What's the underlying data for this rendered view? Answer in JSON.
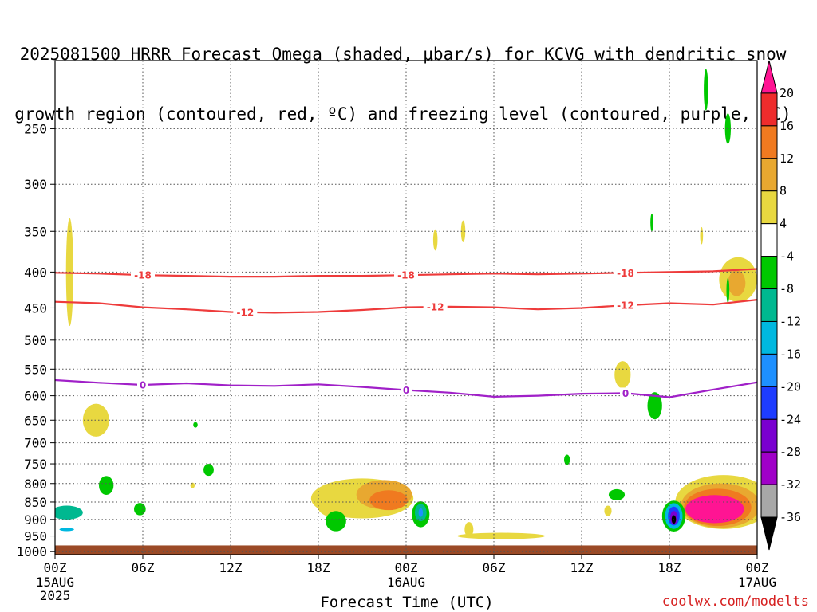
{
  "title_line1": "2025081500 HRRR Forecast Omega (shaded, μbar/s) for KCVG with dendritic snow",
  "title_line2": "growth region (contoured, red, ºC) and freezing level (contoured, purple, ºC)",
  "credit": "coolwx.com/modelts",
  "chart_data": {
    "type": "heatmap",
    "title": "2025081500 HRRR Forecast Omega (shaded, μbar/s) for KCVG with dendritic snow growth region (contoured, red, ºC) and freezing level (contoured, purple, ºC)",
    "xlabel": "Forecast Time (UTC)",
    "ylabel": "",
    "x_ticks": [
      {
        "hour": 0,
        "label": "00Z",
        "sub": [
          "15AUG",
          "2025"
        ]
      },
      {
        "hour": 6,
        "label": "06Z",
        "sub": []
      },
      {
        "hour": 12,
        "label": "12Z",
        "sub": []
      },
      {
        "hour": 18,
        "label": "18Z",
        "sub": []
      },
      {
        "hour": 24,
        "label": "00Z",
        "sub": [
          "16AUG"
        ]
      },
      {
        "hour": 30,
        "label": "06Z",
        "sub": []
      },
      {
        "hour": 36,
        "label": "12Z",
        "sub": []
      },
      {
        "hour": 42,
        "label": "18Z",
        "sub": []
      },
      {
        "hour": 48,
        "label": "00Z",
        "sub": [
          "17AUG"
        ]
      }
    ],
    "xlim": [
      0,
      48
    ],
    "y_ticks": [
      250,
      300,
      350,
      400,
      450,
      500,
      550,
      600,
      650,
      700,
      750,
      800,
      850,
      900,
      950,
      1000
    ],
    "ylim": [
      1010,
      200
    ],
    "y_scale": "log-pressure",
    "grid": true,
    "colorbar": {
      "labels": [
        "20",
        "16",
        "12",
        "8",
        "4",
        "-4",
        "-8",
        "-12",
        "-16",
        "-20",
        "-24",
        "-28",
        "-32",
        "-36"
      ],
      "colors": [
        "#ff1493",
        "#ee2c2c",
        "#f07a20",
        "#e8a830",
        "#e8d840",
        "#ffffff",
        "#00c800",
        "#00b890",
        "#00b8e0",
        "#1e90ff",
        "#1e3cff",
        "#7a00d0",
        "#a000c8",
        "#a8a8a8",
        "#000000"
      ]
    },
    "contours": [
      {
        "name": "-18",
        "color": "#ee3b3b",
        "points": [
          [
            0,
            401
          ],
          [
            3,
            402
          ],
          [
            6,
            404
          ],
          [
            9,
            405
          ],
          [
            12,
            406
          ],
          [
            15,
            406
          ],
          [
            18,
            405
          ],
          [
            21,
            405
          ],
          [
            24,
            404
          ],
          [
            27,
            403
          ],
          [
            30,
            402
          ],
          [
            33,
            403
          ],
          [
            36,
            402
          ],
          [
            39,
            401
          ],
          [
            42,
            400
          ],
          [
            45,
            399
          ],
          [
            48,
            396
          ]
        ],
        "labels": [
          6,
          24,
          39
        ]
      },
      {
        "name": "-12",
        "color": "#ee3b3b",
        "points": [
          [
            0,
            441
          ],
          [
            3,
            443
          ],
          [
            6,
            449
          ],
          [
            9,
            452
          ],
          [
            12,
            456
          ],
          [
            15,
            457
          ],
          [
            18,
            456
          ],
          [
            21,
            453
          ],
          [
            24,
            449
          ],
          [
            27,
            448
          ],
          [
            30,
            449
          ],
          [
            33,
            452
          ],
          [
            36,
            450
          ],
          [
            39,
            446
          ],
          [
            42,
            443
          ],
          [
            45,
            445
          ],
          [
            48,
            438
          ]
        ],
        "labels": [
          13,
          26,
          39
        ]
      },
      {
        "name": "0",
        "color": "#a020c8",
        "points": [
          [
            0,
            570
          ],
          [
            3,
            575
          ],
          [
            6,
            579
          ],
          [
            9,
            576
          ],
          [
            12,
            580
          ],
          [
            15,
            581
          ],
          [
            18,
            578
          ],
          [
            21,
            583
          ],
          [
            24,
            589
          ],
          [
            27,
            594
          ],
          [
            30,
            602
          ],
          [
            33,
            600
          ],
          [
            36,
            596
          ],
          [
            39,
            595
          ],
          [
            42,
            603
          ],
          [
            45,
            588
          ],
          [
            48,
            574
          ]
        ],
        "labels": [
          6,
          24,
          39
        ]
      }
    ],
    "omega_regions": [
      {
        "hour": 0.8,
        "p": 880,
        "w": 1.1,
        "ph": 40,
        "value": -12
      },
      {
        "hour": 0.8,
        "p": 930,
        "w": 0.5,
        "ph": 10,
        "value": -16
      },
      {
        "hour": 3.5,
        "p": 805,
        "w": 0.5,
        "ph": 50,
        "value": -8
      },
      {
        "hour": 5.8,
        "p": 870,
        "w": 0.4,
        "ph": 35,
        "value": -8
      },
      {
        "hour": 10.5,
        "p": 765,
        "w": 0.35,
        "ph": 30,
        "value": -8
      },
      {
        "hour": 9.6,
        "p": 660,
        "w": 0.15,
        "ph": 12,
        "value": -8
      },
      {
        "hour": 19.2,
        "p": 905,
        "w": 0.7,
        "ph": 60,
        "value": -8
      },
      {
        "hour": 25.0,
        "p": 885,
        "w": 0.6,
        "ph": 75,
        "value": -8
      },
      {
        "hour": 25.0,
        "p": 880,
        "w": 0.4,
        "ph": 50,
        "value": -12
      },
      {
        "hour": 25.0,
        "p": 880,
        "w": 0.15,
        "ph": 25,
        "value": -20
      },
      {
        "hour": 38.4,
        "p": 830,
        "w": 0.55,
        "ph": 30,
        "value": -8
      },
      {
        "hour": 35.0,
        "p": 740,
        "w": 0.2,
        "ph": 25,
        "value": -8
      },
      {
        "hour": 41.0,
        "p": 620,
        "w": 0.5,
        "ph": 55,
        "value": -8
      },
      {
        "hour": 40.8,
        "p": 340,
        "w": 0.1,
        "ph": 20,
        "value": -8
      },
      {
        "hour": 42.3,
        "p": 890,
        "w": 0.8,
        "ph": 90,
        "value": -8
      },
      {
        "hour": 42.3,
        "p": 890,
        "w": 0.6,
        "ph": 75,
        "value": -16
      },
      {
        "hour": 42.3,
        "p": 890,
        "w": 0.4,
        "ph": 55,
        "value": -24
      },
      {
        "hour": 42.3,
        "p": 895,
        "w": 0.25,
        "ph": 40,
        "value": -28
      },
      {
        "hour": 42.3,
        "p": 900,
        "w": 0.15,
        "ph": 25,
        "value": -36
      },
      {
        "hour": 44.5,
        "p": 220,
        "w": 0.15,
        "ph": 30,
        "value": -8
      },
      {
        "hour": 46.0,
        "p": 250,
        "w": 0.2,
        "ph": 25,
        "value": -8
      },
      {
        "hour": 46.0,
        "p": 425,
        "w": 0.1,
        "ph": 35,
        "value": -8
      }
    ],
    "rising_regions": [
      {
        "hour": 1.0,
        "p": 400,
        "w": 0.25,
        "ph": 140,
        "value": 4
      },
      {
        "hour": 2.8,
        "p": 650,
        "w": 0.9,
        "ph": 70,
        "value": 4
      },
      {
        "hour": 9.4,
        "p": 805,
        "w": 0.15,
        "ph": 15,
        "value": 4
      },
      {
        "hour": 21.0,
        "p": 840,
        "w": 3.5,
        "ph": 110,
        "value": 4
      },
      {
        "hour": 22.5,
        "p": 830,
        "w": 1.9,
        "ph": 80,
        "value": 8
      },
      {
        "hour": 22.8,
        "p": 845,
        "w": 1.3,
        "ph": 55,
        "value": 12
      },
      {
        "hour": 18.8,
        "p": 855,
        "w": 0.9,
        "ph": 70,
        "value": 4
      },
      {
        "hour": 30.5,
        "p": 950,
        "w": 3.0,
        "ph": 20,
        "value": 4
      },
      {
        "hour": 28.3,
        "p": 930,
        "w": 0.3,
        "ph": 45,
        "value": 4
      },
      {
        "hour": 27.9,
        "p": 350,
        "w": 0.15,
        "ph": 25,
        "value": 4
      },
      {
        "hour": 26.0,
        "p": 360,
        "w": 0.15,
        "ph": 25,
        "value": 4
      },
      {
        "hour": 37.8,
        "p": 875,
        "w": 0.25,
        "ph": 30,
        "value": 4
      },
      {
        "hour": 38.8,
        "p": 560,
        "w": 0.55,
        "ph": 50,
        "value": 4
      },
      {
        "hour": 45.7,
        "p": 850,
        "w": 3.3,
        "ph": 150,
        "value": 4
      },
      {
        "hour": 45.5,
        "p": 860,
        "w": 2.7,
        "ph": 125,
        "value": 8
      },
      {
        "hour": 45.3,
        "p": 865,
        "w": 2.3,
        "ph": 105,
        "value": 12
      },
      {
        "hour": 45.1,
        "p": 870,
        "w": 2.0,
        "ph": 80,
        "value": 20
      },
      {
        "hour": 46.7,
        "p": 410,
        "w": 1.3,
        "ph": 60,
        "value": 4
      },
      {
        "hour": 46.6,
        "p": 415,
        "w": 0.6,
        "ph": 35,
        "value": 8
      },
      {
        "hour": 44.2,
        "p": 355,
        "w": 0.1,
        "ph": 20,
        "value": 4
      }
    ],
    "ground_pressure": 980
  }
}
